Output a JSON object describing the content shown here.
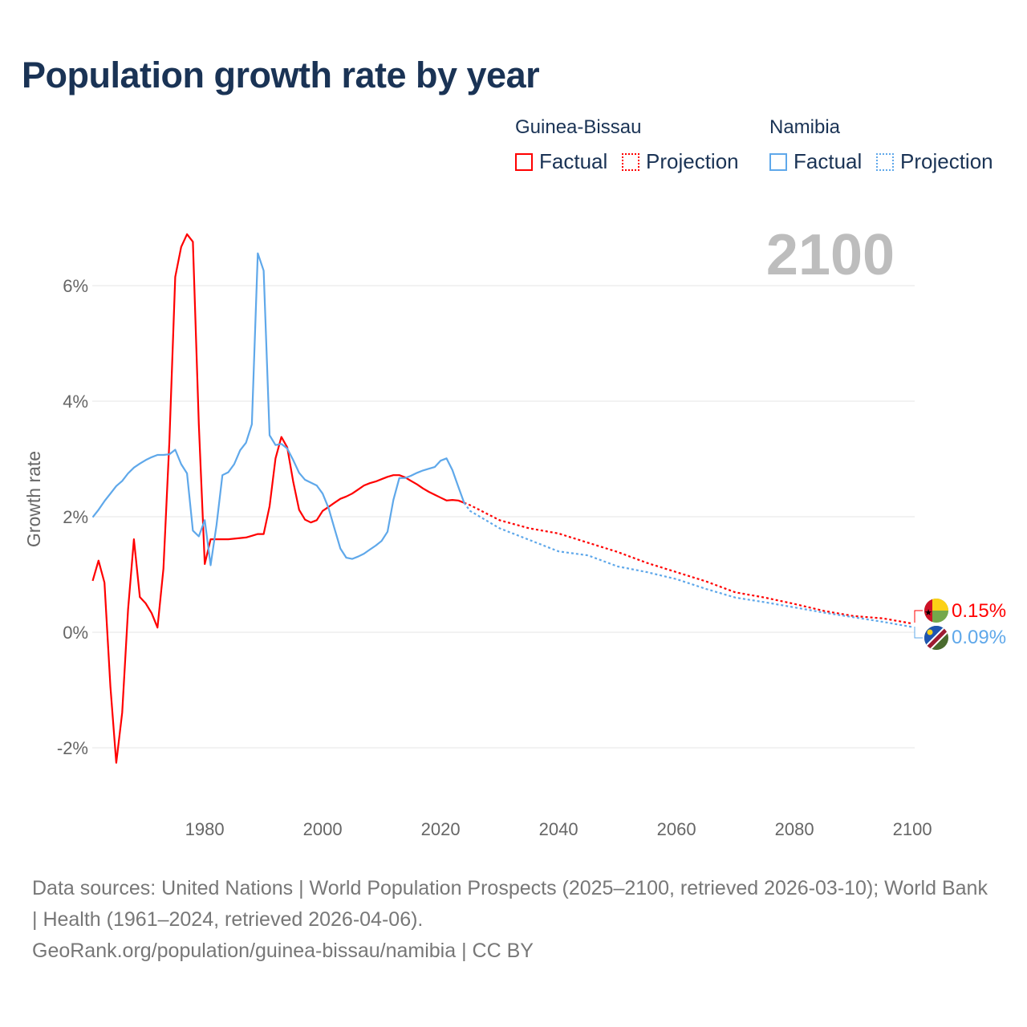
{
  "title": "Population growth rate by year",
  "legend": {
    "groups": [
      {
        "country": "Guinea-Bissau",
        "factual": "Factual",
        "projection": "Projection",
        "color": "#ff0000"
      },
      {
        "country": "Namibia",
        "factual": "Factual",
        "projection": "Projection",
        "color": "#5fa8ea"
      }
    ]
  },
  "year_display": "2100",
  "footer": {
    "sources": "Data sources: United Nations | World Population Prospects (2025–2100, retrieved 2026-03-10); World Bank | Health (1961–2024, retrieved 2026-04-06).",
    "credit": "GeoRank.org/population/guinea-bissau/namibia | CC BY"
  },
  "chart_data": {
    "type": "line",
    "title": "Population growth rate by year",
    "xlabel": "",
    "ylabel": "Growth rate",
    "xlim": [
      1961,
      2100
    ],
    "ylim": [
      -3,
      7
    ],
    "x_ticks": [
      "1980",
      "2000",
      "2020",
      "2040",
      "2060",
      "2080",
      "2100"
    ],
    "x_tick_values": [
      1980,
      2000,
      2020,
      2040,
      2060,
      2080,
      2100
    ],
    "y_ticks": [
      "-2%",
      "0%",
      "2%",
      "4%",
      "6%"
    ],
    "y_tick_values": [
      -2,
      0,
      2,
      4,
      6
    ],
    "grid": true,
    "series": [
      {
        "name": "Guinea-Bissau",
        "color": "#ff0000",
        "end_label": "0.15%",
        "flag": "guinea-bissau-flag",
        "factual": {
          "start_year": 1961,
          "values": [
            0.89,
            1.24,
            0.86,
            -0.94,
            -2.26,
            -1.39,
            0.39,
            1.61,
            0.61,
            0.5,
            0.33,
            0.08,
            1.1,
            3.3,
            6.15,
            6.67,
            6.89,
            6.76,
            3.6,
            1.18,
            1.61,
            1.61,
            1.61,
            1.61,
            1.62,
            1.63,
            1.64,
            1.67,
            1.7,
            1.7,
            2.18,
            3.01,
            3.38,
            3.2,
            2.61,
            2.12,
            1.95,
            1.9,
            1.94,
            2.1,
            2.17,
            2.24,
            2.31,
            2.35,
            2.4,
            2.47,
            2.54,
            2.58,
            2.61,
            2.65,
            2.69,
            2.72,
            2.72,
            2.68,
            2.62,
            2.56,
            2.49,
            2.43,
            2.38,
            2.33,
            2.28,
            2.29,
            2.28,
            2.24
          ]
        },
        "projection": {
          "years": [
            2024,
            2025,
            2030,
            2035,
            2040,
            2045,
            2050,
            2055,
            2060,
            2065,
            2070,
            2075,
            2080,
            2085,
            2090,
            2095,
            2100
          ],
          "values": [
            2.24,
            2.2,
            1.94,
            1.8,
            1.71,
            1.55,
            1.39,
            1.2,
            1.04,
            0.88,
            0.69,
            0.6,
            0.49,
            0.37,
            0.28,
            0.24,
            0.15
          ]
        }
      },
      {
        "name": "Namibia",
        "color": "#5fa8ea",
        "end_label": "0.09%",
        "flag": "namibia-flag",
        "factual": {
          "start_year": 1961,
          "values": [
            1.99,
            2.12,
            2.27,
            2.4,
            2.53,
            2.62,
            2.75,
            2.85,
            2.92,
            2.98,
            3.03,
            3.07,
            3.07,
            3.08,
            3.16,
            2.91,
            2.75,
            1.76,
            1.66,
            1.94,
            1.16,
            1.86,
            2.72,
            2.77,
            2.91,
            3.15,
            3.28,
            3.6,
            6.56,
            6.26,
            3.41,
            3.24,
            3.26,
            3.18,
            2.98,
            2.76,
            2.64,
            2.59,
            2.54,
            2.4,
            2.15,
            1.8,
            1.45,
            1.29,
            1.27,
            1.31,
            1.36,
            1.43,
            1.5,
            1.58,
            1.74,
            2.29,
            2.67,
            2.67,
            2.71,
            2.76,
            2.8,
            2.83,
            2.86,
            2.97,
            3.01,
            2.81,
            2.52,
            2.24
          ]
        },
        "projection": {
          "years": [
            2024,
            2025,
            2030,
            2035,
            2040,
            2045,
            2050,
            2055,
            2060,
            2065,
            2070,
            2075,
            2080,
            2085,
            2090,
            2095,
            2100
          ],
          "values": [
            2.24,
            2.1,
            1.8,
            1.6,
            1.4,
            1.33,
            1.14,
            1.04,
            0.92,
            0.75,
            0.6,
            0.52,
            0.43,
            0.34,
            0.26,
            0.18,
            0.09
          ]
        }
      }
    ]
  }
}
